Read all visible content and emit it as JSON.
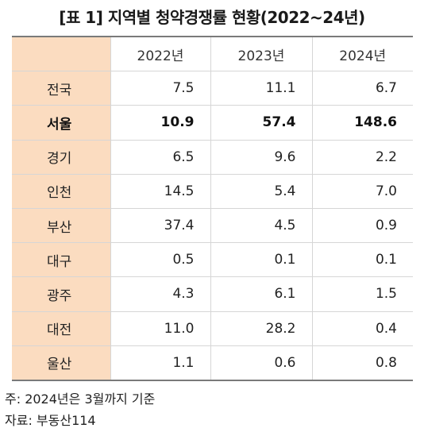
{
  "title": "[표 1] 지역별 청약경쟁률 현황(2022~24년)",
  "table": {
    "corner": "",
    "columns": [
      "2022년",
      "2023년",
      "2024년"
    ],
    "rows": [
      {
        "region": "전국",
        "values": [
          "7.5",
          "11.1",
          "6.7"
        ],
        "bold": false
      },
      {
        "region": "서울",
        "values": [
          "10.9",
          "57.4",
          "148.6"
        ],
        "bold": true
      },
      {
        "region": "경기",
        "values": [
          "6.5",
          "9.6",
          "2.2"
        ],
        "bold": false
      },
      {
        "region": "인천",
        "values": [
          "14.5",
          "5.4",
          "7.0"
        ],
        "bold": false
      },
      {
        "region": "부산",
        "values": [
          "37.4",
          "4.5",
          "0.9"
        ],
        "bold": false
      },
      {
        "region": "대구",
        "values": [
          "0.5",
          "0.1",
          "0.1"
        ],
        "bold": false
      },
      {
        "region": "광주",
        "values": [
          "4.3",
          "6.1",
          "1.5"
        ],
        "bold": false
      },
      {
        "region": "대전",
        "values": [
          "11.0",
          "28.2",
          "0.4"
        ],
        "bold": false
      },
      {
        "region": "울산",
        "values": [
          "1.1",
          "0.6",
          "0.8"
        ],
        "bold": false
      }
    ]
  },
  "notes": {
    "note": "주: 2024년은 3월까지 기준",
    "source": "자료: 부동산114"
  },
  "colors": {
    "header_fill": "#fbdcc0",
    "rule": "#7a7a7a"
  }
}
